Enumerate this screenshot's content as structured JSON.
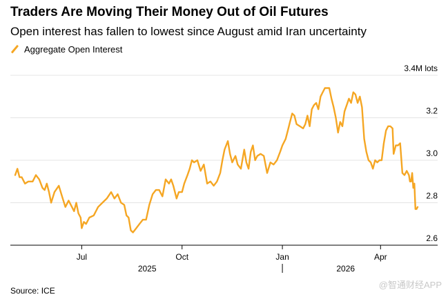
{
  "header": {
    "title": "Traders Are Moving Their Money Out of Oil Futures",
    "subtitle": "Open interest has fallen to lowest since August amid Iran uncertainty"
  },
  "source": "Source: ICE",
  "watermark": "@智通财经APP",
  "chart_data": {
    "type": "line",
    "title": "Traders Are Moving Their Money Out of Oil Futures",
    "subtitle": "Open interest has fallen to lowest since August amid Iran uncertainty",
    "legend_position": "top-left",
    "grid": true,
    "y_axis_side": "right",
    "unit_label": "3.4M lots",
    "ylim": [
      2.6,
      3.4
    ],
    "y_ticks": [
      {
        "value": 3.4,
        "label": "3.4M lots"
      },
      {
        "value": 3.2,
        "label": "3.2"
      },
      {
        "value": 3.0,
        "label": "3.0"
      },
      {
        "value": 2.8,
        "label": "2.8"
      },
      {
        "value": 2.6,
        "label": "2.6"
      }
    ],
    "xlim": [
      "2025-05-01",
      "2026-05-05"
    ],
    "x_ticks": [
      {
        "date": "2025-07-01",
        "label": "Jul"
      },
      {
        "date": "2025-10-01",
        "label": "Oct"
      },
      {
        "date": "2026-01-01",
        "label": "Jan"
      },
      {
        "date": "2026-04-01",
        "label": "Apr"
      }
    ],
    "year_labels": [
      {
        "date": "2025-08-30",
        "label": "2025"
      },
      {
        "date": "2026-02-28",
        "label": "2026"
      }
    ],
    "colors": {
      "series": "#f5a623",
      "grid": "#e4e4e4",
      "axis": "#000000"
    },
    "series": [
      {
        "name": "Aggregate Open Interest",
        "points": [
          [
            "2025-05-01",
            2.93
          ],
          [
            "2025-05-03",
            2.96
          ],
          [
            "2025-05-05",
            2.92
          ],
          [
            "2025-05-07",
            2.92
          ],
          [
            "2025-05-10",
            2.89
          ],
          [
            "2025-05-13",
            2.9
          ],
          [
            "2025-05-17",
            2.9
          ],
          [
            "2025-05-20",
            2.93
          ],
          [
            "2025-05-23",
            2.91
          ],
          [
            "2025-05-26",
            2.87
          ],
          [
            "2025-05-28",
            2.86
          ],
          [
            "2025-05-30",
            2.89
          ],
          [
            "2025-06-01",
            2.85
          ],
          [
            "2025-06-03",
            2.8
          ],
          [
            "2025-06-06",
            2.85
          ],
          [
            "2025-06-10",
            2.88
          ],
          [
            "2025-06-13",
            2.83
          ],
          [
            "2025-06-16",
            2.78
          ],
          [
            "2025-06-19",
            2.81
          ],
          [
            "2025-06-22",
            2.78
          ],
          [
            "2025-06-24",
            2.76
          ],
          [
            "2025-06-26",
            2.8
          ],
          [
            "2025-06-28",
            2.75
          ],
          [
            "2025-06-30",
            2.73
          ],
          [
            "2025-07-01",
            2.68
          ],
          [
            "2025-07-03",
            2.71
          ],
          [
            "2025-07-05",
            2.7
          ],
          [
            "2025-07-08",
            2.73
          ],
          [
            "2025-07-12",
            2.74
          ],
          [
            "2025-07-16",
            2.78
          ],
          [
            "2025-07-20",
            2.8
          ],
          [
            "2025-07-24",
            2.82
          ],
          [
            "2025-07-28",
            2.85
          ],
          [
            "2025-07-31",
            2.82
          ],
          [
            "2025-08-03",
            2.84
          ],
          [
            "2025-08-06",
            2.8
          ],
          [
            "2025-08-09",
            2.79
          ],
          [
            "2025-08-11",
            2.74
          ],
          [
            "2025-08-13",
            2.73
          ],
          [
            "2025-08-15",
            2.67
          ],
          [
            "2025-08-17",
            2.66
          ],
          [
            "2025-08-20",
            2.68
          ],
          [
            "2025-08-23",
            2.7
          ],
          [
            "2025-08-26",
            2.72
          ],
          [
            "2025-08-29",
            2.72
          ],
          [
            "2025-09-01",
            2.79
          ],
          [
            "2025-09-04",
            2.84
          ],
          [
            "2025-09-07",
            2.86
          ],
          [
            "2025-09-10",
            2.86
          ],
          [
            "2025-09-13",
            2.83
          ],
          [
            "2025-09-16",
            2.91
          ],
          [
            "2025-09-19",
            2.89
          ],
          [
            "2025-09-21",
            2.91
          ],
          [
            "2025-09-23",
            2.88
          ],
          [
            "2025-09-26",
            2.82
          ],
          [
            "2025-09-28",
            2.85
          ],
          [
            "2025-10-01",
            2.85
          ],
          [
            "2025-10-03",
            2.89
          ],
          [
            "2025-10-06",
            2.93
          ],
          [
            "2025-10-08",
            2.96
          ],
          [
            "2025-10-10",
            3.0
          ],
          [
            "2025-10-12",
            2.99
          ],
          [
            "2025-10-15",
            3.0
          ],
          [
            "2025-10-18",
            2.95
          ],
          [
            "2025-10-21",
            2.98
          ],
          [
            "2025-10-24",
            2.89
          ],
          [
            "2025-10-27",
            2.9
          ],
          [
            "2025-10-30",
            2.88
          ],
          [
            "2025-11-02",
            2.9
          ],
          [
            "2025-11-05",
            2.94
          ],
          [
            "2025-11-07",
            3.0
          ],
          [
            "2025-11-09",
            3.05
          ],
          [
            "2025-11-12",
            3.09
          ],
          [
            "2025-11-14",
            3.03
          ],
          [
            "2025-11-16",
            2.99
          ],
          [
            "2025-11-19",
            3.02
          ],
          [
            "2025-11-21",
            2.98
          ],
          [
            "2025-11-24",
            2.96
          ],
          [
            "2025-11-27",
            3.05
          ],
          [
            "2025-11-29",
            2.99
          ],
          [
            "2025-12-01",
            2.96
          ],
          [
            "2025-12-03",
            3.04
          ],
          [
            "2025-12-05",
            3.07
          ],
          [
            "2025-12-07",
            3.0
          ],
          [
            "2025-12-09",
            3.02
          ],
          [
            "2025-12-12",
            3.03
          ],
          [
            "2025-12-15",
            3.02
          ],
          [
            "2025-12-18",
            2.94
          ],
          [
            "2025-12-21",
            2.99
          ],
          [
            "2025-12-24",
            2.98
          ],
          [
            "2025-12-27",
            3.0
          ],
          [
            "2025-12-30",
            3.04
          ],
          [
            "2026-01-01",
            3.07
          ],
          [
            "2026-01-04",
            3.1
          ],
          [
            "2026-01-06",
            3.14
          ],
          [
            "2026-01-08",
            3.18
          ],
          [
            "2026-01-10",
            3.22
          ],
          [
            "2026-01-12",
            3.21
          ],
          [
            "2026-01-14",
            3.17
          ],
          [
            "2026-01-17",
            3.16
          ],
          [
            "2026-01-20",
            3.15
          ],
          [
            "2026-01-22",
            3.17
          ],
          [
            "2026-01-24",
            3.21
          ],
          [
            "2026-01-26",
            3.16
          ],
          [
            "2026-01-28",
            3.24
          ],
          [
            "2026-01-30",
            3.26
          ],
          [
            "2026-02-01",
            3.27
          ],
          [
            "2026-02-03",
            3.24
          ],
          [
            "2026-02-05",
            3.3
          ],
          [
            "2026-02-07",
            3.32
          ],
          [
            "2026-02-09",
            3.34
          ],
          [
            "2026-02-11",
            3.34
          ],
          [
            "2026-02-13",
            3.34
          ],
          [
            "2026-02-15",
            3.29
          ],
          [
            "2026-02-17",
            3.25
          ],
          [
            "2026-02-19",
            3.2
          ],
          [
            "2026-02-21",
            3.13
          ],
          [
            "2026-02-23",
            3.18
          ],
          [
            "2026-02-25",
            3.16
          ],
          [
            "2026-02-27",
            3.23
          ],
          [
            "2026-03-01",
            3.26
          ],
          [
            "2026-03-03",
            3.29
          ],
          [
            "2026-03-05",
            3.27
          ],
          [
            "2026-03-07",
            3.32
          ],
          [
            "2026-03-09",
            3.31
          ],
          [
            "2026-03-11",
            3.27
          ],
          [
            "2026-03-13",
            3.3
          ],
          [
            "2026-03-15",
            3.25
          ],
          [
            "2026-03-17",
            3.1
          ],
          [
            "2026-03-19",
            3.04
          ],
          [
            "2026-03-21",
            3.0
          ],
          [
            "2026-03-23",
            2.99
          ],
          [
            "2026-03-25",
            2.96
          ],
          [
            "2026-03-27",
            3.0
          ],
          [
            "2026-03-29",
            2.99
          ],
          [
            "2026-03-31",
            3.0
          ],
          [
            "2026-04-02",
            3.0
          ],
          [
            "2026-04-04",
            3.08
          ],
          [
            "2026-04-06",
            3.14
          ],
          [
            "2026-04-08",
            3.16
          ],
          [
            "2026-04-10",
            3.16
          ],
          [
            "2026-04-12",
            3.15
          ],
          [
            "2026-04-13",
            3.03
          ],
          [
            "2026-04-15",
            3.07
          ],
          [
            "2026-04-17",
            3.07
          ],
          [
            "2026-04-19",
            3.08
          ],
          [
            "2026-04-21",
            2.94
          ],
          [
            "2026-04-23",
            2.93
          ],
          [
            "2026-04-25",
            2.95
          ],
          [
            "2026-04-27",
            2.93
          ],
          [
            "2026-04-28",
            2.9
          ],
          [
            "2026-04-29",
            2.9
          ],
          [
            "2026-04-30",
            2.94
          ],
          [
            "2026-05-01",
            2.87
          ],
          [
            "2026-05-02",
            2.89
          ],
          [
            "2026-05-03",
            2.77
          ],
          [
            "2026-05-04",
            2.77
          ],
          [
            "2026-05-05",
            2.78
          ]
        ]
      }
    ]
  }
}
